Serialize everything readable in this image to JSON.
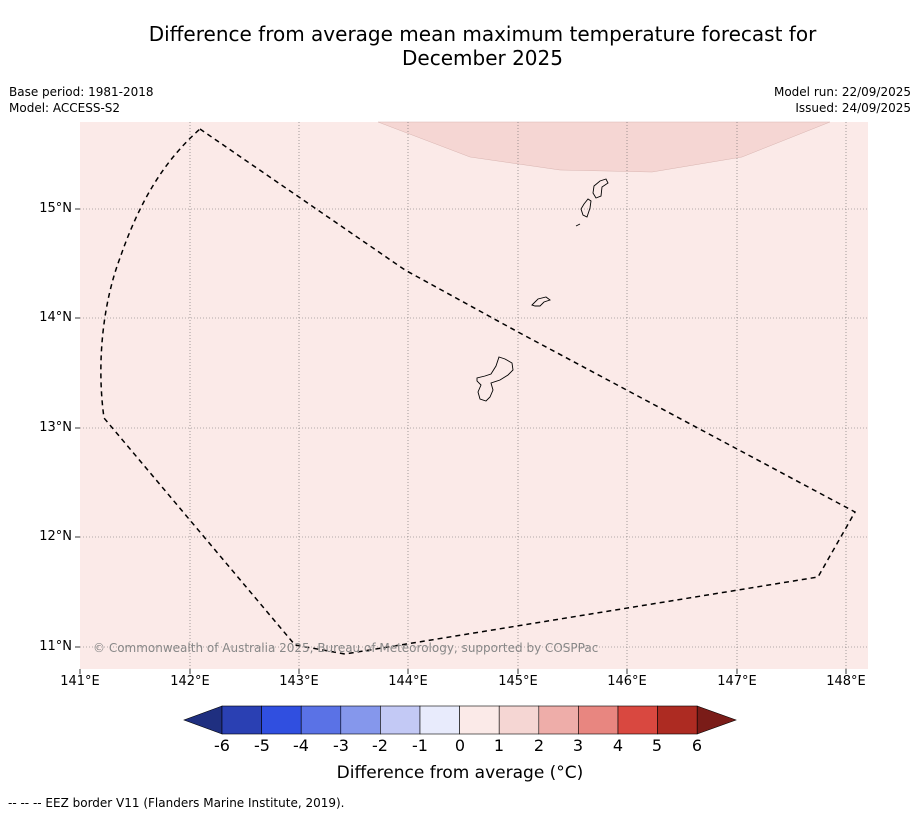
{
  "title_line1": "Difference from average mean maximum temperature forecast for",
  "title_line2": "December 2025",
  "base_period": "Base period: 1981-2018",
  "model": "Model: ACCESS-S2",
  "model_run": "Model run: 22/09/2025",
  "issued": "Issued: 24/09/2025",
  "lat_labels": [
    "15°N",
    "14°N",
    "13°N",
    "12°N",
    "11°N"
  ],
  "lon_labels": [
    "141°E",
    "142°E",
    "143°E",
    "144°E",
    "145°E",
    "146°E",
    "147°E",
    "148°E"
  ],
  "copyright": "© Commonwealth of Australia 2025, Bureau of Meteorology, supported by COSPPac",
  "colorbar": {
    "ticks": [
      "-6",
      "-5",
      "-4",
      "-3",
      "-2",
      "-1",
      "0",
      "1",
      "2",
      "3",
      "4",
      "5",
      "6"
    ],
    "colors": [
      "#1f2f80",
      "#2a40b3",
      "#304fe0",
      "#5a72e6",
      "#8597ec",
      "#c3c9f5",
      "#e8ebfc",
      "#fbeae8",
      "#f5d6d3",
      "#eeada9",
      "#e88680",
      "#d94840",
      "#ad2b22",
      "#7a1c18"
    ],
    "label": "Difference from average (°C)"
  },
  "map_colors": {
    "background": "#fbeae8",
    "warm_zone": "#f5d6d3"
  },
  "footnote": "--  --  -- EEZ border V11 (Flanders Marine Institute, 2019)."
}
